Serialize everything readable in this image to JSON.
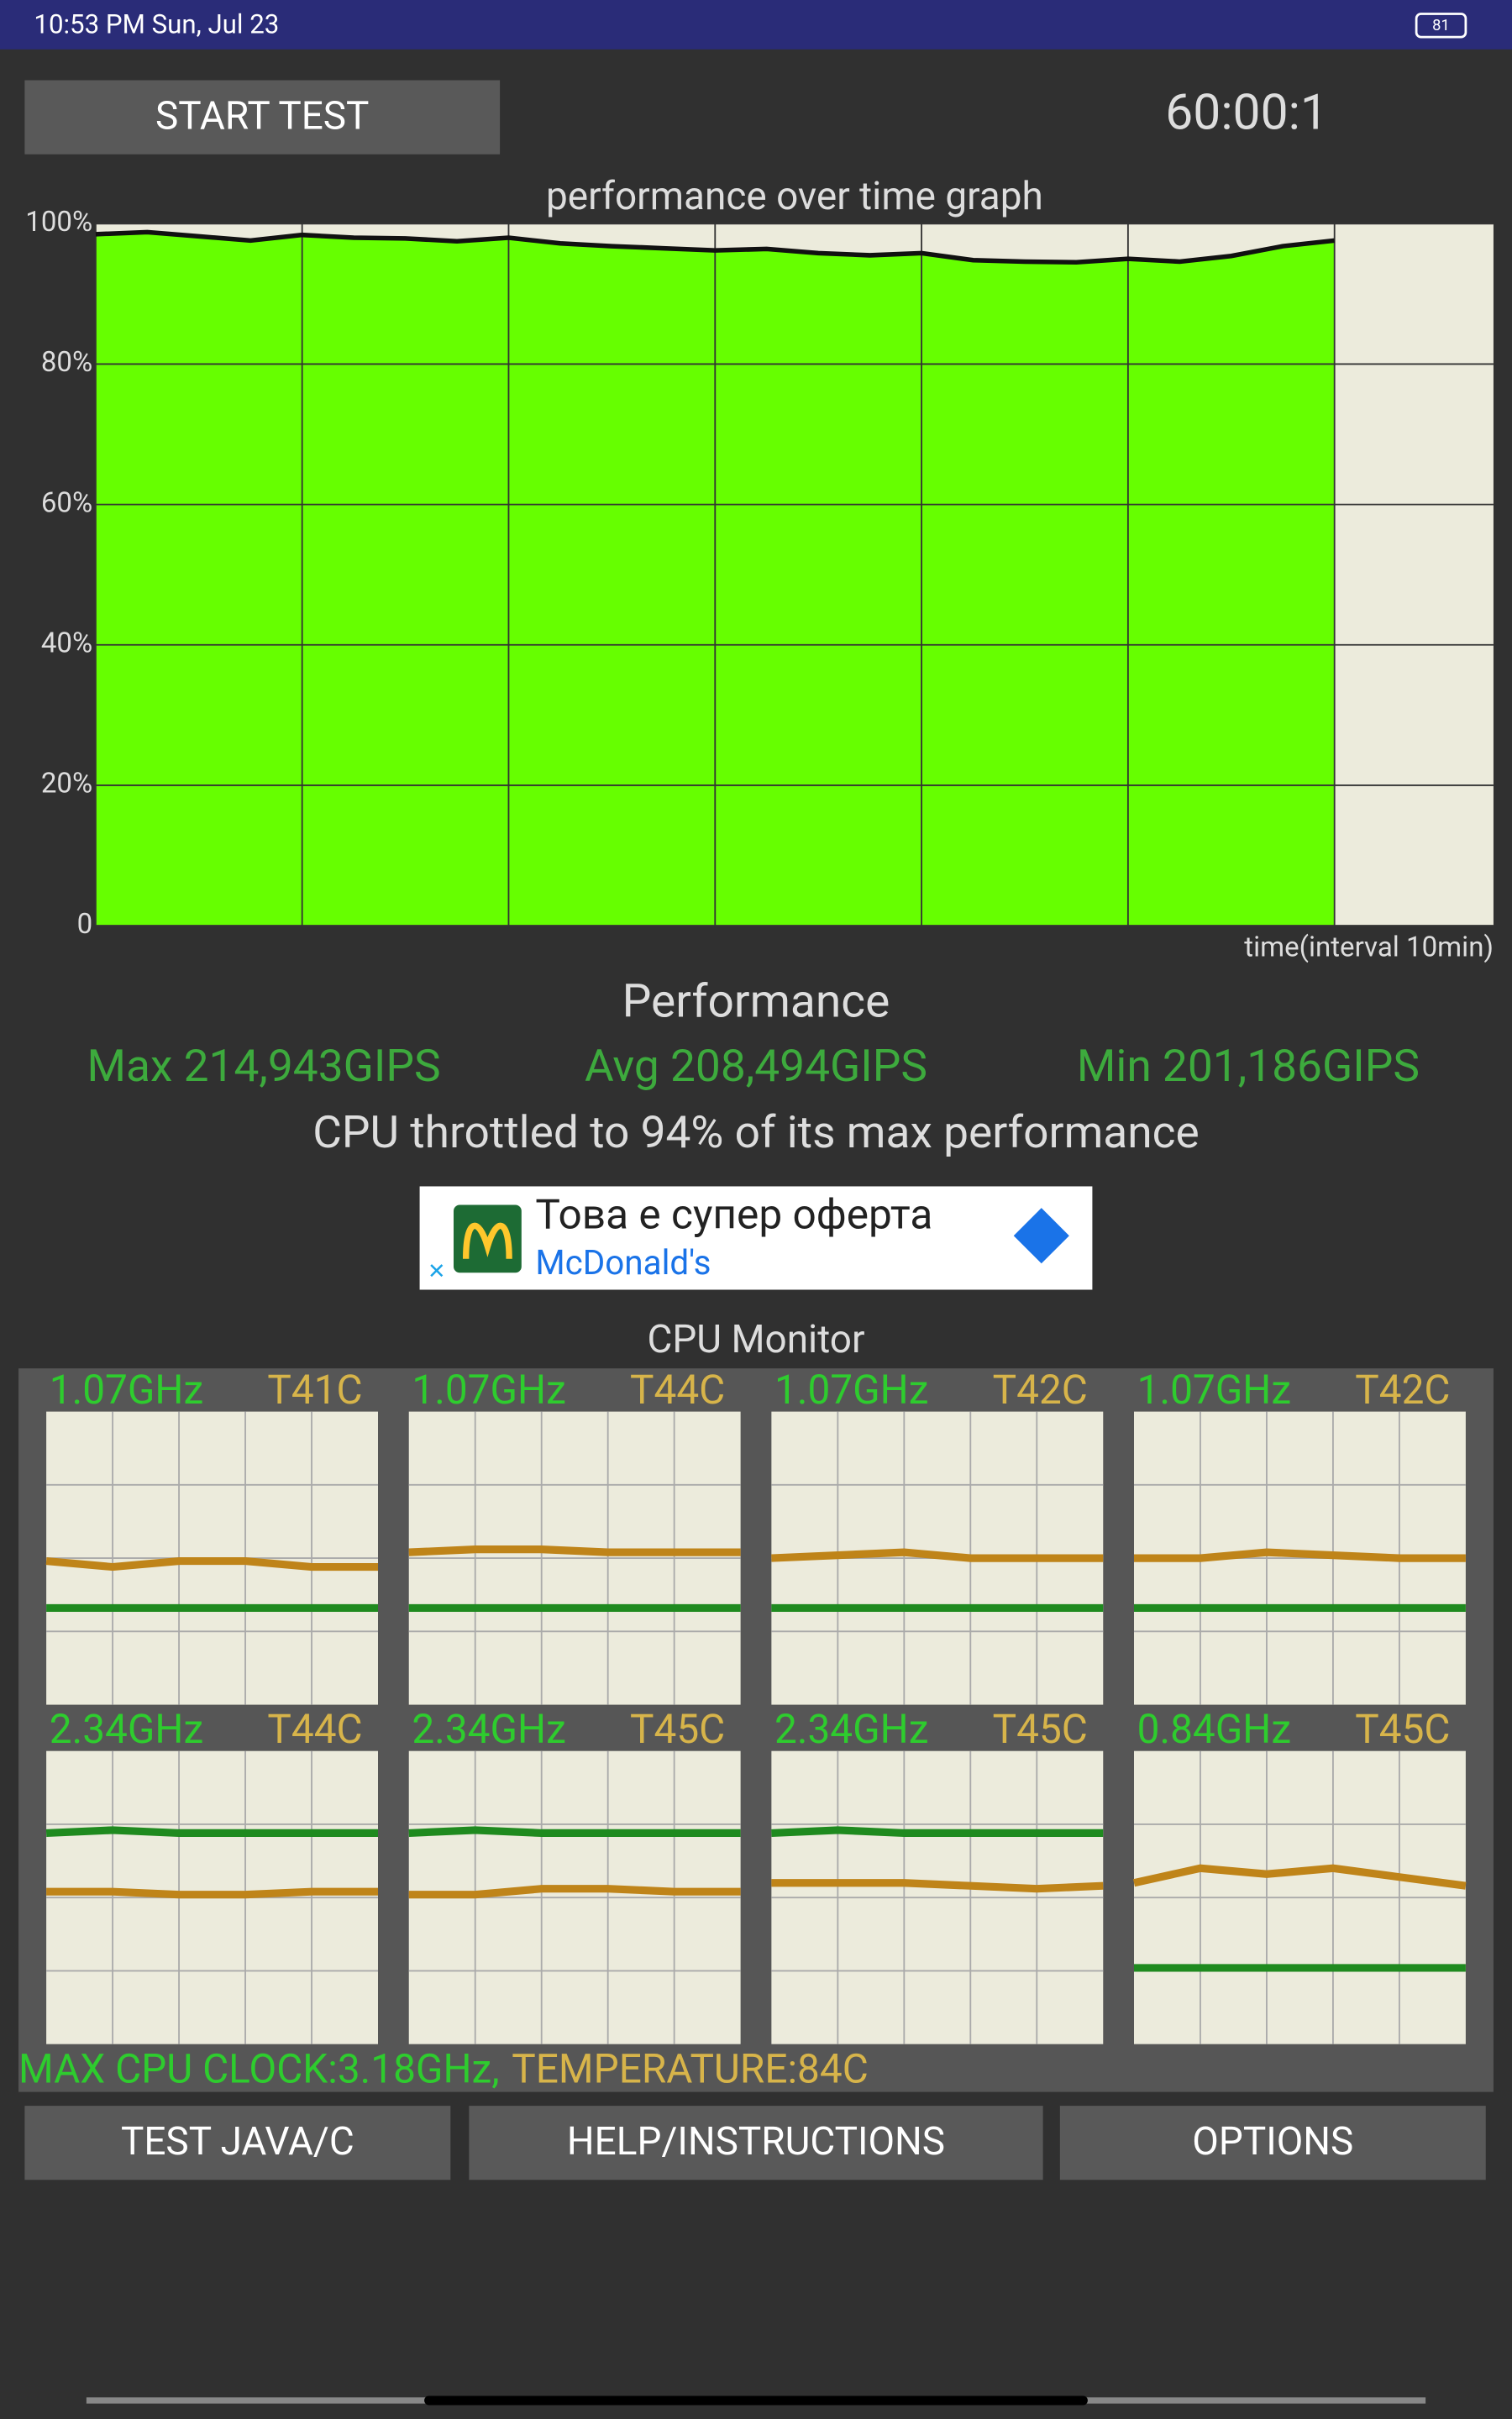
{
  "status_bar": {
    "time": "10:53 PM Sun, Jul 23",
    "battery": "81"
  },
  "buttons": {
    "start": "START TEST",
    "java": "TEST JAVA/C",
    "help": "HELP/INSTRUCTIONS",
    "options": "OPTIONS"
  },
  "timer": "60:00:1",
  "chart_data": {
    "type": "area",
    "title": "performance over time graph",
    "x_label": "time(interval 10min)",
    "xlim": [
      0,
      67.7
    ],
    "xticks": [
      0,
      10,
      20,
      30,
      40,
      50,
      60
    ],
    "ylim": [
      0,
      100
    ],
    "yticks": [
      {
        "value": 100,
        "label": "100%"
      },
      {
        "value": 80,
        "label": "80%"
      },
      {
        "value": 60,
        "label": "60%"
      },
      {
        "value": 40,
        "label": "40%"
      },
      {
        "value": 20,
        "label": "20%"
      },
      0
    ],
    "grid": true,
    "color": "#66ff00",
    "line_color": "#111111",
    "x": [
      0,
      2.5,
      5,
      7.5,
      10,
      12.5,
      15,
      17.5,
      20,
      22.5,
      25,
      27.5,
      30,
      32.5,
      35,
      37.5,
      40,
      42.5,
      45,
      47.5,
      50,
      52.5,
      55,
      57.5,
      60
    ],
    "values": [
      98.5,
      98.8,
      98.2,
      97.6,
      98.4,
      98,
      97.9,
      97.5,
      98,
      97.2,
      96.8,
      96.5,
      96.2,
      96.4,
      95.8,
      95.5,
      95.8,
      94.8,
      94.6,
      94.5,
      95,
      94.6,
      95.4,
      96.8,
      97.6
    ]
  },
  "performance": {
    "heading": "Performance",
    "max": "Max 214,943GIPS",
    "avg": "Avg 208,494GIPS",
    "min": "Min 201,186GIPS",
    "summary": "CPU throttled to 94% of its max performance"
  },
  "ad": {
    "text": "Това е супер оферта",
    "brand": "McDonald's"
  },
  "cpu_monitor": {
    "title": "CPU Monitor",
    "ylim": [
      0,
      100
    ],
    "freq_color": "#1f8a1f",
    "temp_color": "#bf8419",
    "cores": [
      {
        "freq": "1.07GHz",
        "temp": "T41C",
        "freq_values": [
          33,
          33,
          33,
          33,
          33,
          33
        ],
        "temp_values": [
          49,
          47,
          49,
          49,
          47,
          47
        ]
      },
      {
        "freq": "1.07GHz",
        "temp": "T44C",
        "freq_values": [
          33,
          33,
          33,
          33,
          33,
          33
        ],
        "temp_values": [
          52,
          53,
          53,
          52,
          52,
          52
        ]
      },
      {
        "freq": "1.07GHz",
        "temp": "T42C",
        "freq_values": [
          33,
          33,
          33,
          33,
          33,
          33
        ],
        "temp_values": [
          50,
          51,
          52,
          50,
          50,
          50
        ]
      },
      {
        "freq": "1.07GHz",
        "temp": "T42C",
        "freq_values": [
          33,
          33,
          33,
          33,
          33,
          33
        ],
        "temp_values": [
          50,
          50,
          52,
          51,
          50,
          50
        ]
      },
      {
        "freq": "2.34GHz",
        "temp": "T44C",
        "freq_values": [
          72,
          73,
          72,
          72,
          72,
          72
        ],
        "temp_values": [
          52,
          52,
          51,
          51,
          52,
          52
        ]
      },
      {
        "freq": "2.34GHz",
        "temp": "T45C",
        "freq_values": [
          72,
          73,
          72,
          72,
          72,
          72
        ],
        "temp_values": [
          51,
          51,
          53,
          53,
          52,
          52
        ]
      },
      {
        "freq": "2.34GHz",
        "temp": "T45C",
        "freq_values": [
          72,
          73,
          72,
          72,
          72,
          72
        ],
        "temp_values": [
          55,
          55,
          55,
          54,
          53,
          54
        ]
      },
      {
        "freq": "0.84GHz",
        "temp": "T45C",
        "freq_values": [
          26,
          26,
          26,
          26,
          26,
          26
        ],
        "temp_values": [
          55,
          60,
          58,
          60,
          57,
          54
        ]
      }
    ],
    "max_clock": "MAX CPU CLOCK:3.18GHz,",
    "temperature": "TEMPERATURE:84C"
  }
}
